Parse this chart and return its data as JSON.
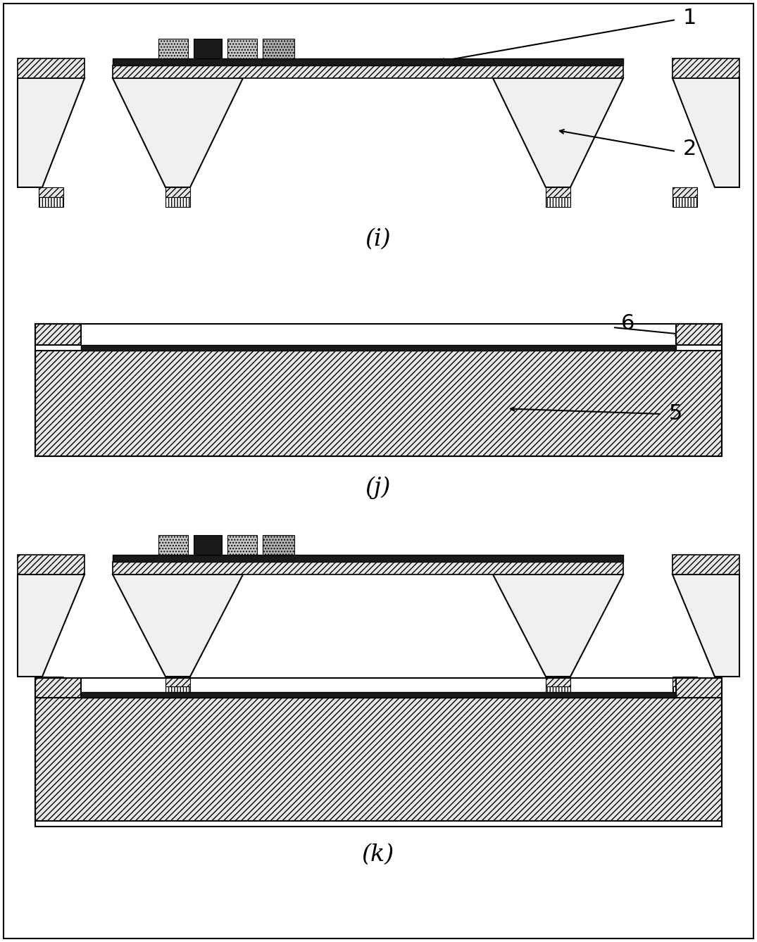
{
  "fig_width": 10.75,
  "fig_height": 13.38,
  "bg_color": "#ffffff",
  "label_i": "(i)",
  "label_j": "(j)",
  "label_k": "(k)"
}
